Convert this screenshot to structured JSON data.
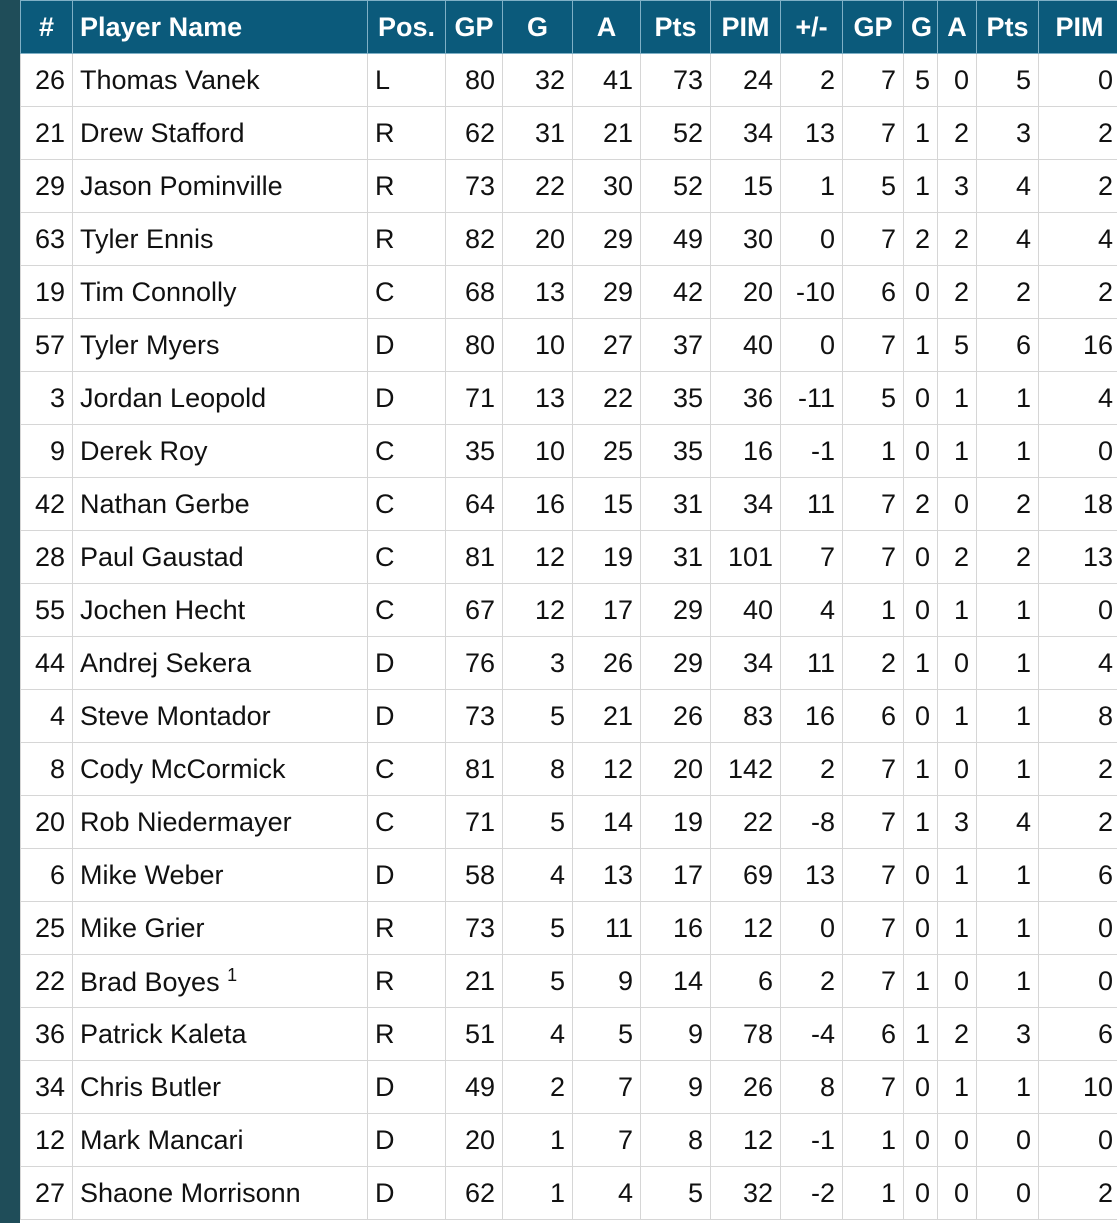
{
  "colors": {
    "header_bg": "#0b5a7b",
    "header_text": "#ffffff",
    "side_bar": "#1f4d59"
  },
  "headers": [
    "#",
    "Player Name",
    "Pos.",
    "GP",
    "G",
    "A",
    "Pts",
    "PIM",
    "+/-",
    "GP",
    "G",
    "A",
    "Pts",
    "PIM"
  ],
  "rows": [
    [
      "26",
      "Thomas Vanek",
      "L",
      "80",
      "32",
      "41",
      "73",
      "24",
      "2",
      "7",
      "5",
      "0",
      "5",
      "0"
    ],
    [
      "21",
      "Drew Stafford",
      "R",
      "62",
      "31",
      "21",
      "52",
      "34",
      "13",
      "7",
      "1",
      "2",
      "3",
      "2"
    ],
    [
      "29",
      "Jason Pominville",
      "R",
      "73",
      "22",
      "30",
      "52",
      "15",
      "1",
      "5",
      "1",
      "3",
      "4",
      "2"
    ],
    [
      "63",
      "Tyler Ennis",
      "R",
      "82",
      "20",
      "29",
      "49",
      "30",
      "0",
      "7",
      "2",
      "2",
      "4",
      "4"
    ],
    [
      "19",
      "Tim Connolly",
      "C",
      "68",
      "13",
      "29",
      "42",
      "20",
      "-10",
      "6",
      "0",
      "2",
      "2",
      "2"
    ],
    [
      "57",
      "Tyler Myers",
      "D",
      "80",
      "10",
      "27",
      "37",
      "40",
      "0",
      "7",
      "1",
      "5",
      "6",
      "16"
    ],
    [
      "3",
      "Jordan Leopold",
      "D",
      "71",
      "13",
      "22",
      "35",
      "36",
      "-11",
      "5",
      "0",
      "1",
      "1",
      "4"
    ],
    [
      "9",
      "Derek Roy",
      "C",
      "35",
      "10",
      "25",
      "35",
      "16",
      "-1",
      "1",
      "0",
      "1",
      "1",
      "0"
    ],
    [
      "42",
      "Nathan Gerbe",
      "C",
      "64",
      "16",
      "15",
      "31",
      "34",
      "11",
      "7",
      "2",
      "0",
      "2",
      "18"
    ],
    [
      "28",
      "Paul Gaustad",
      "C",
      "81",
      "12",
      "19",
      "31",
      "101",
      "7",
      "7",
      "0",
      "2",
      "2",
      "13"
    ],
    [
      "55",
      "Jochen Hecht",
      "C",
      "67",
      "12",
      "17",
      "29",
      "40",
      "4",
      "1",
      "0",
      "1",
      "1",
      "0"
    ],
    [
      "44",
      "Andrej Sekera",
      "D",
      "76",
      "3",
      "26",
      "29",
      "34",
      "11",
      "2",
      "1",
      "0",
      "1",
      "4"
    ],
    [
      "4",
      "Steve Montador",
      "D",
      "73",
      "5",
      "21",
      "26",
      "83",
      "16",
      "6",
      "0",
      "1",
      "1",
      "8"
    ],
    [
      "8",
      "Cody McCormick",
      "C",
      "81",
      "8",
      "12",
      "20",
      "142",
      "2",
      "7",
      "1",
      "0",
      "1",
      "2"
    ],
    [
      "20",
      "Rob Niedermayer",
      "C",
      "71",
      "5",
      "14",
      "19",
      "22",
      "-8",
      "7",
      "1",
      "3",
      "4",
      "2"
    ],
    [
      "6",
      "Mike Weber",
      "D",
      "58",
      "4",
      "13",
      "17",
      "69",
      "13",
      "7",
      "0",
      "1",
      "1",
      "6"
    ],
    [
      "25",
      "Mike Grier",
      "R",
      "73",
      "5",
      "11",
      "16",
      "12",
      "0",
      "7",
      "0",
      "1",
      "1",
      "0"
    ],
    [
      "22",
      "Brad Boyes",
      "R",
      "21",
      "5",
      "9",
      "14",
      "6",
      "2",
      "7",
      "1",
      "0",
      "1",
      "0"
    ],
    [
      "36",
      "Patrick Kaleta",
      "R",
      "51",
      "4",
      "5",
      "9",
      "78",
      "-4",
      "6",
      "1",
      "2",
      "3",
      "6"
    ],
    [
      "34",
      "Chris Butler",
      "D",
      "49",
      "2",
      "7",
      "9",
      "26",
      "8",
      "7",
      "0",
      "1",
      "1",
      "10"
    ],
    [
      "12",
      "Mark Mancari",
      "D",
      "20",
      "1",
      "7",
      "8",
      "12",
      "-1",
      "1",
      "0",
      "0",
      "0",
      "0"
    ],
    [
      "27",
      "Shaone Morrisonn",
      "D",
      "62",
      "1",
      "4",
      "5",
      "32",
      "-2",
      "1",
      "0",
      "0",
      "0",
      "2"
    ]
  ],
  "footnotes": {
    "17": "1"
  }
}
